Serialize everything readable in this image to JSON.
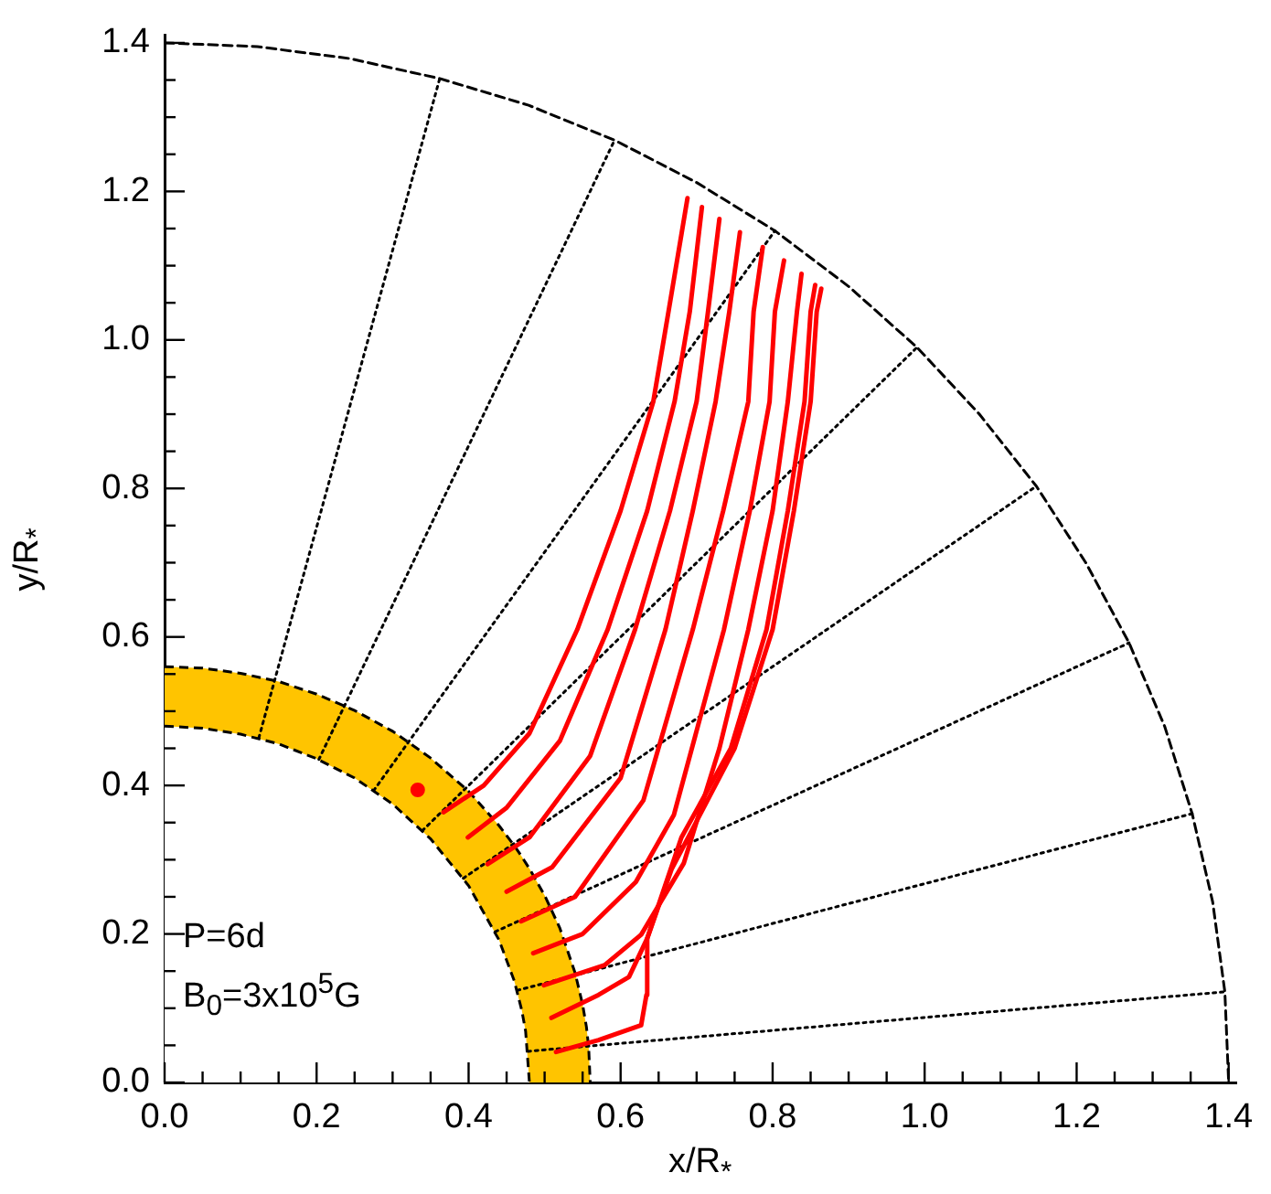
{
  "chart_data": {
    "type": "line",
    "xlabel": "x/R$_{*}$",
    "ylabel": "y/R$_{*}$",
    "annotations": [
      "P=6d",
      "B$_{0}$=3x10$^{5}$G"
    ],
    "xlim": [
      0,
      1.41
    ],
    "ylim": [
      0,
      1.41
    ],
    "xticks": [
      {
        "value": 0,
        "label": "0.0"
      },
      {
        "value": 0.05,
        "label": null
      },
      {
        "value": 0.1,
        "label": null
      },
      {
        "value": 0.15,
        "label": null
      },
      {
        "value": 0.2,
        "label": "0.2"
      },
      {
        "value": 0.25,
        "label": null
      },
      {
        "value": 0.3,
        "label": null
      },
      {
        "value": 0.35,
        "label": null
      },
      {
        "value": 0.4,
        "label": "0.4"
      },
      {
        "value": 0.45,
        "label": null
      },
      {
        "value": 0.5,
        "label": null
      },
      {
        "value": 0.55,
        "label": null
      },
      {
        "value": 0.6,
        "label": "0.6"
      },
      {
        "value": 0.65,
        "label": null
      },
      {
        "value": 0.7,
        "label": null
      },
      {
        "value": 0.75,
        "label": null
      },
      {
        "value": 0.8,
        "label": "0.8"
      },
      {
        "value": 0.85,
        "label": null
      },
      {
        "value": 0.9,
        "label": null
      },
      {
        "value": 0.95,
        "label": null
      },
      {
        "value": 1,
        "label": "1.0"
      },
      {
        "value": 1.05,
        "label": null
      },
      {
        "value": 1.1,
        "label": null
      },
      {
        "value": 1.15,
        "label": null
      },
      {
        "value": 1.2,
        "label": "1.2"
      },
      {
        "value": 1.25,
        "label": null
      },
      {
        "value": 1.3,
        "label": null
      },
      {
        "value": 1.35,
        "label": null
      },
      {
        "value": 1.4,
        "label": "1.4"
      }
    ],
    "yticks": [
      {
        "value": 0,
        "label": "0.0"
      },
      {
        "value": 0.05,
        "label": null
      },
      {
        "value": 0.1,
        "label": null
      },
      {
        "value": 0.15,
        "label": null
      },
      {
        "value": 0.2,
        "label": "0.2"
      },
      {
        "value": 0.25,
        "label": null
      },
      {
        "value": 0.3,
        "label": null
      },
      {
        "value": 0.35,
        "label": null
      },
      {
        "value": 0.4,
        "label": "0.4"
      },
      {
        "value": 0.45,
        "label": null
      },
      {
        "value": 0.5,
        "label": null
      },
      {
        "value": 0.55,
        "label": null
      },
      {
        "value": 0.6,
        "label": "0.6"
      },
      {
        "value": 0.65,
        "label": null
      },
      {
        "value": 0.7,
        "label": null
      },
      {
        "value": 0.75,
        "label": null
      },
      {
        "value": 0.8,
        "label": "0.8"
      },
      {
        "value": 0.85,
        "label": null
      },
      {
        "value": 0.9,
        "label": null
      },
      {
        "value": 0.95,
        "label": null
      },
      {
        "value": 1,
        "label": "1.0"
      },
      {
        "value": 1.05,
        "label": null
      },
      {
        "value": 1.1,
        "label": null
      },
      {
        "value": 1.15,
        "label": null
      },
      {
        "value": 1.2,
        "label": "1.2"
      },
      {
        "value": 1.25,
        "label": null
      },
      {
        "value": 1.3,
        "label": null
      },
      {
        "value": 1.35,
        "label": null
      },
      {
        "value": 1.4,
        "label": "1.4"
      }
    ],
    "series": [
      {
        "type": "area",
        "color": "#ffc400",
        "line_style": "dashed",
        "x": [
          0,
          0.05,
          0.1,
          0.15,
          0.2,
          0.25,
          0.3,
          0.35,
          0.4,
          0.44,
          0.46,
          0.47,
          0.475,
          0.48,
          0.5,
          0.52,
          0.54,
          0.55,
          0.555,
          0.558,
          0.56
        ],
        "values": [
          0.56,
          0.558,
          0.551,
          0.54,
          0.523,
          0.501,
          0.473,
          0.437,
          0.392,
          0.346,
          0.319,
          0.304,
          0.296,
          0.288,
          0.252,
          0.208,
          0.148,
          0.105,
          0.075,
          0.047,
          0
        ]
      },
      {
        "type": "area",
        "color": "#ffffff",
        "line_style": "dashed",
        "x": [
          0,
          0.05,
          0.1,
          0.15,
          0.2,
          0.25,
          0.3,
          0.35,
          0.4,
          0.44,
          0.46,
          0.47,
          0.475,
          0.48
        ],
        "values": [
          0.48,
          0.477,
          0.469,
          0.456,
          0.436,
          0.41,
          0.375,
          0.328,
          0.265,
          0.192,
          0.137,
          0.097,
          0.069,
          0
        ]
      },
      {
        "color": "#000000",
        "line_style": "dashed",
        "x": [
          0,
          0.122,
          0.243,
          0.362,
          0.479,
          0.592,
          0.7,
          0.803,
          0.9,
          0.99,
          1.072,
          1.147,
          1.212,
          1.269,
          1.316,
          1.352,
          1.379,
          1.395,
          1.4
        ],
        "values": [
          1.4,
          1.395,
          1.379,
          1.352,
          1.316,
          1.269,
          1.212,
          1.147,
          1.072,
          0.99,
          0.9,
          0.803,
          0.7,
          0.592,
          0.479,
          0.362,
          0.243,
          0.122,
          0
        ]
      },
      {
        "color": "#000000",
        "line_style": "dotted",
        "x": [
          0.478,
          1.395
        ],
        "values": [
          0.042,
          0.122
        ]
      },
      {
        "color": "#000000",
        "line_style": "dotted",
        "x": [
          0.464,
          1.352
        ],
        "values": [
          0.124,
          0.362
        ]
      },
      {
        "color": "#000000",
        "line_style": "dotted",
        "x": [
          0.435,
          1.269
        ],
        "values": [
          0.203,
          0.592
        ]
      },
      {
        "color": "#000000",
        "line_style": "dotted",
        "x": [
          0.393,
          1.147
        ],
        "values": [
          0.275,
          0.803
        ]
      },
      {
        "color": "#000000",
        "line_style": "dotted",
        "x": [
          0.339,
          0.99
        ],
        "values": [
          0.339,
          0.99
        ]
      },
      {
        "color": "#000000",
        "line_style": "dotted",
        "x": [
          0.275,
          0.803
        ],
        "values": [
          0.393,
          1.147
        ]
      },
      {
        "color": "#000000",
        "line_style": "dotted",
        "x": [
          0.203,
          0.592
        ],
        "values": [
          0.435,
          1.269
        ]
      },
      {
        "color": "#000000",
        "line_style": "dotted",
        "x": [
          0.124,
          0.362
        ],
        "values": [
          0.464,
          1.352
        ]
      },
      {
        "color": "#ff0000",
        "line_style": "solid",
        "x": [
          0.367,
          0.42,
          0.48,
          0.543,
          0.6,
          0.643,
          0.663,
          0.688
        ],
        "values": [
          0.364,
          0.4,
          0.47,
          0.61,
          0.77,
          0.917,
          1.038,
          1.191
        ]
      },
      {
        "color": "#ff0000",
        "line_style": "solid",
        "x": [
          0.399,
          0.45,
          0.52,
          0.583,
          0.635,
          0.671,
          0.691,
          0.707
        ],
        "values": [
          0.33,
          0.37,
          0.46,
          0.61,
          0.77,
          0.917,
          1.038,
          1.179
        ]
      },
      {
        "color": "#ff0000",
        "line_style": "solid",
        "x": [
          0.425,
          0.48,
          0.56,
          0.619,
          0.665,
          0.7,
          0.715,
          0.73
        ],
        "values": [
          0.294,
          0.33,
          0.44,
          0.61,
          0.77,
          0.917,
          1.038,
          1.163
        ]
      },
      {
        "color": "#ff0000",
        "line_style": "solid",
        "x": [
          0.45,
          0.51,
          0.6,
          0.659,
          0.695,
          0.725,
          0.743,
          0.757
        ],
        "values": [
          0.257,
          0.29,
          0.41,
          0.61,
          0.77,
          0.917,
          1.038,
          1.145
        ]
      },
      {
        "color": "#ff0000",
        "line_style": "solid",
        "x": [
          0.469,
          0.54,
          0.63,
          0.695,
          0.735,
          0.768,
          0.775,
          0.787
        ],
        "values": [
          0.217,
          0.25,
          0.38,
          0.61,
          0.77,
          0.917,
          1.038,
          1.125
        ]
      },
      {
        "color": "#ff0000",
        "line_style": "solid",
        "x": [
          0.485,
          0.55,
          0.62,
          0.67,
          0.736,
          0.77,
          0.796,
          0.803,
          0.815
        ],
        "values": [
          0.174,
          0.2,
          0.27,
          0.36,
          0.61,
          0.77,
          0.917,
          1.038,
          1.107
        ]
      },
      {
        "color": "#ff0000",
        "line_style": "solid",
        "x": [
          0.499,
          0.579,
          0.627,
          0.683,
          0.73,
          0.768,
          0.8,
          0.82,
          0.832,
          0.838
        ],
        "values": [
          0.131,
          0.158,
          0.199,
          0.295,
          0.45,
          0.61,
          0.77,
          0.917,
          1.038,
          1.089
        ]
      },
      {
        "color": "#ff0000",
        "line_style": "solid",
        "x": [
          0.509,
          0.571,
          0.611,
          0.635,
          0.68,
          0.745,
          0.792,
          0.82,
          0.842,
          0.85,
          0.856
        ],
        "values": [
          0.087,
          0.118,
          0.142,
          0.194,
          0.33,
          0.45,
          0.61,
          0.77,
          0.917,
          1.038,
          1.074
        ]
      },
      {
        "color": "#ff0000",
        "line_style": "solid",
        "x": [
          0.515,
          0.571,
          0.627,
          0.634,
          0.635,
          0.667,
          0.75,
          0.8,
          0.828,
          0.85,
          0.858,
          0.864
        ],
        "values": [
          0.041,
          0.057,
          0.077,
          0.118,
          0.194,
          0.287,
          0.45,
          0.61,
          0.77,
          0.917,
          1.038,
          1.069
        ]
      },
      {
        "type": "scatter",
        "color": "#ff0000",
        "marker": "circle",
        "x": [
          0.333
        ],
        "values": [
          0.394
        ]
      }
    ]
  }
}
